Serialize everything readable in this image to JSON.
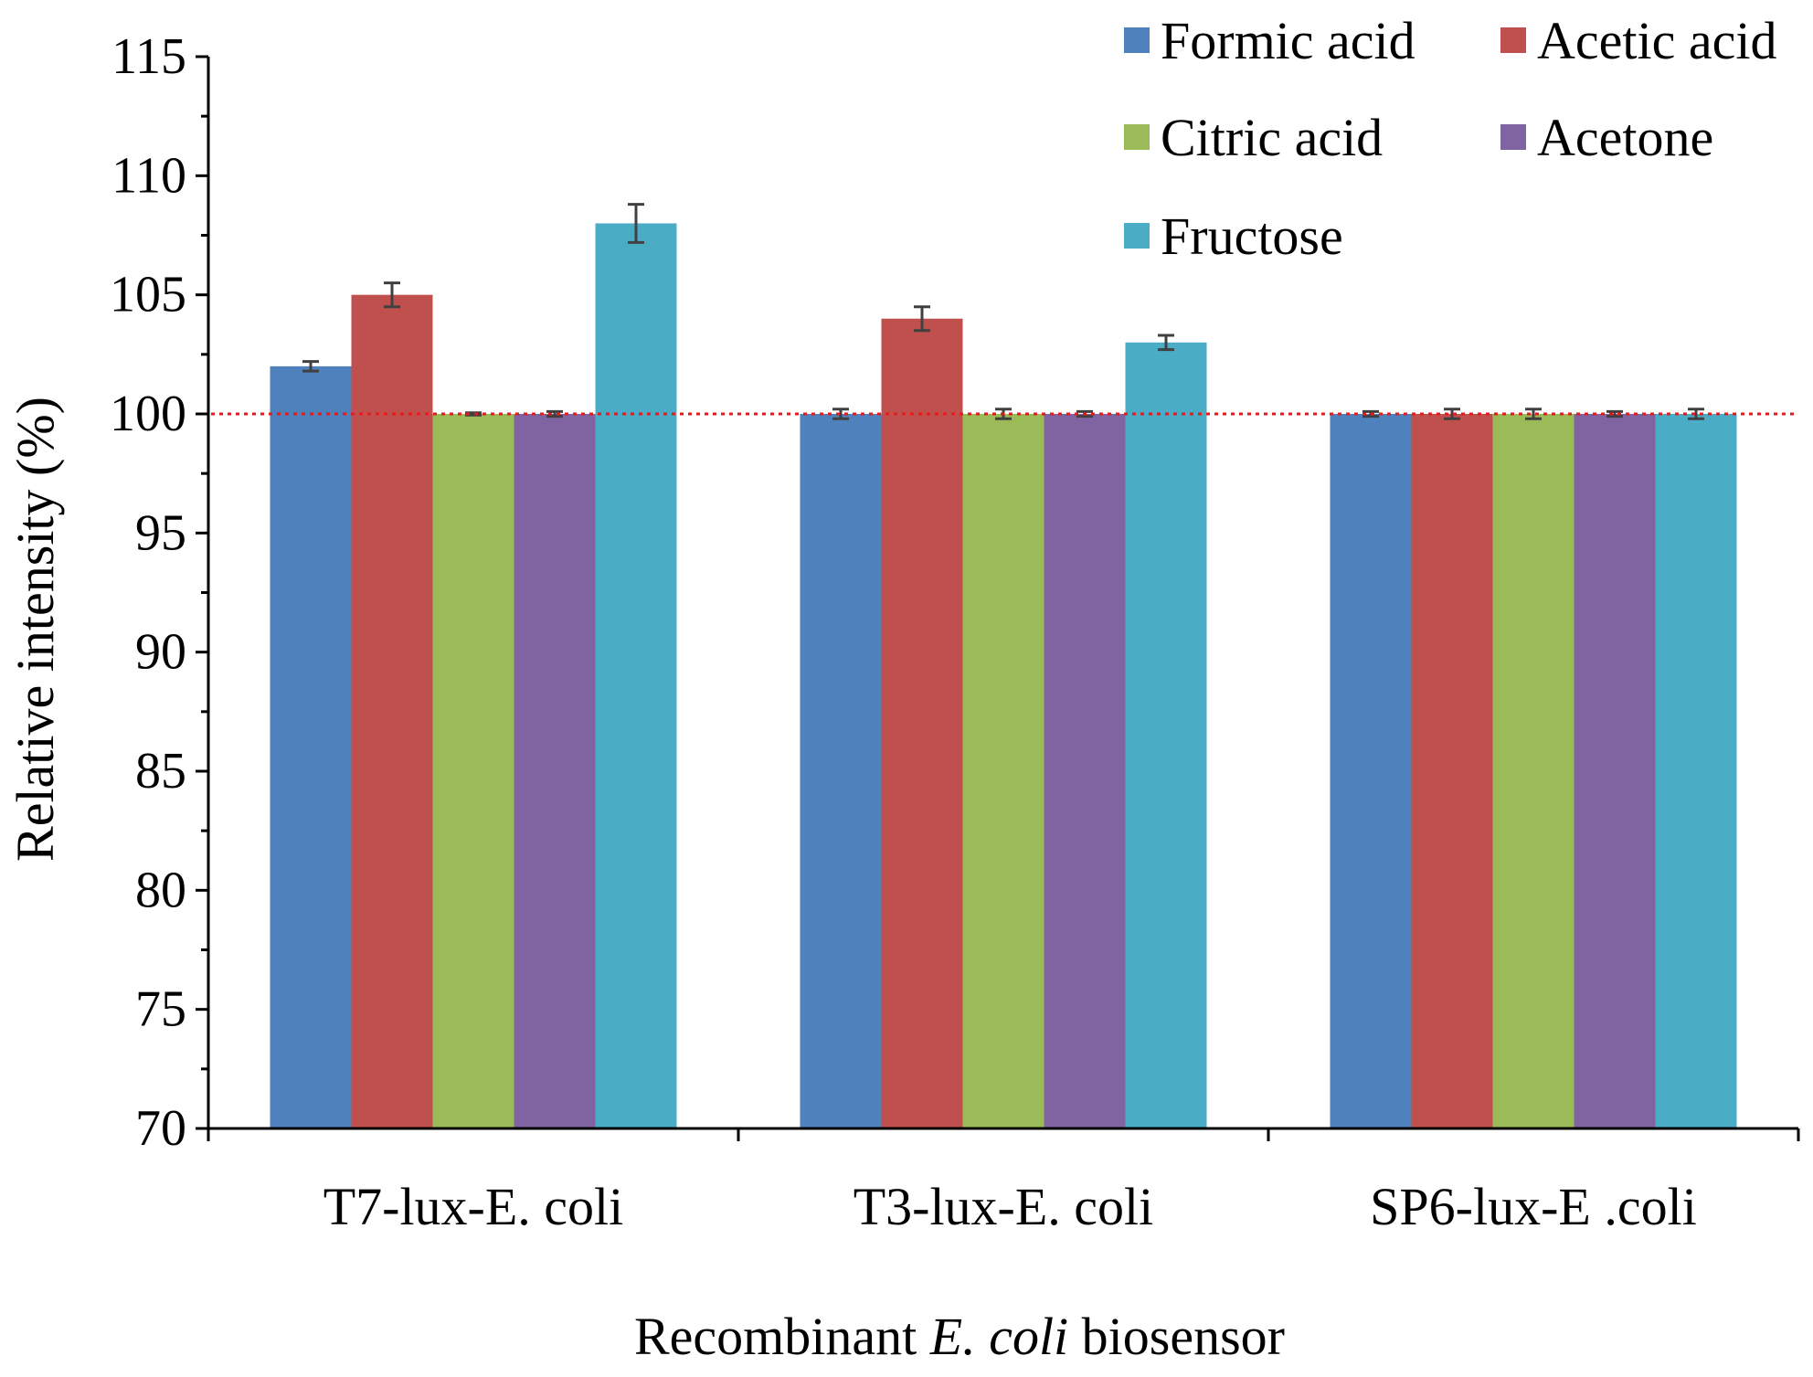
{
  "chart_data": {
    "type": "bar",
    "title": "",
    "xlabel_parts": [
      {
        "text": "Recombinant ",
        "italic": false
      },
      {
        "text": "E. coli",
        "italic": true
      },
      {
        "text": " biosensor",
        "italic": false
      }
    ],
    "ylabel": "Relative intensity (%)",
    "ylim": [
      70,
      115
    ],
    "yticks": [
      70,
      75,
      80,
      85,
      90,
      95,
      100,
      105,
      110,
      115
    ],
    "ytick_labels": [
      "70",
      "75",
      "80",
      "85",
      "90",
      "95",
      "100",
      "105",
      "110",
      "115"
    ],
    "reference_line": 100,
    "categories": [
      "T7-lux-E. coli",
      "T3-lux-E. coli",
      "SP6-lux-E .coli"
    ],
    "series": [
      {
        "name": "Formic acid",
        "color": "#4F81BD",
        "values": [
          102,
          100,
          100
        ],
        "errors": [
          0.2,
          0.2,
          0.1
        ]
      },
      {
        "name": "Acetic acid",
        "color": "#C0504D",
        "values": [
          105,
          104,
          100
        ],
        "errors": [
          0.5,
          0.5,
          0.2
        ]
      },
      {
        "name": "Citric acid",
        "color": "#9BBB59",
        "values": [
          100,
          100,
          100
        ],
        "errors": [
          0.05,
          0.2,
          0.2
        ]
      },
      {
        "name": "Acetone",
        "color": "#8064A2",
        "values": [
          100,
          100,
          100
        ],
        "errors": [
          0.1,
          0.1,
          0.1
        ]
      },
      {
        "name": "Fructose",
        "color": "#4BACC6",
        "values": [
          108,
          103,
          100
        ],
        "errors": [
          0.8,
          0.3,
          0.2
        ]
      }
    ],
    "legend_position": "top-right",
    "reference_line_color": "#E41A1C"
  }
}
